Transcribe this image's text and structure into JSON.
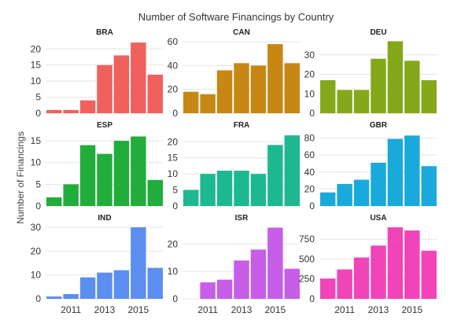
{
  "chart_data": {
    "type": "bar",
    "title": "Number of Software Financings by Country",
    "ylabel": "Number of Financings",
    "xlabel": "",
    "x": [
      2010,
      2011,
      2012,
      2013,
      2014,
      2015,
      2016
    ],
    "x_tick_labels": [
      "2011",
      "2013",
      "2015"
    ],
    "grid": true,
    "facets": [
      {
        "name": "BRA",
        "color": "#f0605d",
        "values": [
          1,
          1,
          4,
          15,
          18,
          22,
          12
        ],
        "ylim": [
          0,
          23
        ],
        "yticks": [
          0,
          5,
          10,
          15,
          20
        ]
      },
      {
        "name": "CAN",
        "color": "#c88712",
        "values": [
          18,
          16,
          36,
          42,
          40,
          58,
          42
        ],
        "ylim": [
          0,
          62
        ],
        "yticks": [
          0,
          20,
          40,
          60
        ]
      },
      {
        "name": "DEU",
        "color": "#85a81a",
        "values": [
          17,
          12,
          12,
          28,
          37,
          27,
          17
        ],
        "ylim": [
          0,
          38
        ],
        "yticks": [
          0,
          10,
          20,
          30
        ]
      },
      {
        "name": "ESP",
        "color": "#21ad3a",
        "values": [
          2,
          5,
          14,
          12,
          15,
          16,
          6
        ],
        "ylim": [
          0,
          17
        ],
        "yticks": [
          0,
          5,
          10,
          15
        ]
      },
      {
        "name": "FRA",
        "color": "#1eb890",
        "values": [
          5,
          10,
          11,
          11,
          10,
          19,
          22
        ],
        "ylim": [
          0,
          23
        ],
        "yticks": [
          0,
          5,
          10,
          15,
          20
        ]
      },
      {
        "name": "GBR",
        "color": "#1aa9db",
        "values": [
          16,
          26,
          31,
          51,
          79,
          83,
          47
        ],
        "ylim": [
          0,
          87
        ],
        "yticks": [
          0,
          20,
          40,
          60,
          80
        ]
      },
      {
        "name": "IND",
        "color": "#5b8ef0",
        "values": [
          1,
          2,
          9,
          11,
          12,
          30,
          13
        ],
        "ylim": [
          0,
          31
        ],
        "yticks": [
          0,
          10,
          20,
          30
        ]
      },
      {
        "name": "ISR",
        "color": "#c75de8",
        "values": [
          0,
          6,
          7,
          14,
          18,
          26,
          11
        ],
        "ylim": [
          0,
          27
        ],
        "yticks": [
          0,
          10,
          20
        ]
      },
      {
        "name": "USA",
        "color": "#f044b8",
        "values": [
          255,
          370,
          520,
          670,
          900,
          860,
          605
        ],
        "ylim": [
          0,
          930
        ],
        "yticks": [
          0,
          250,
          500,
          750
        ]
      }
    ]
  }
}
